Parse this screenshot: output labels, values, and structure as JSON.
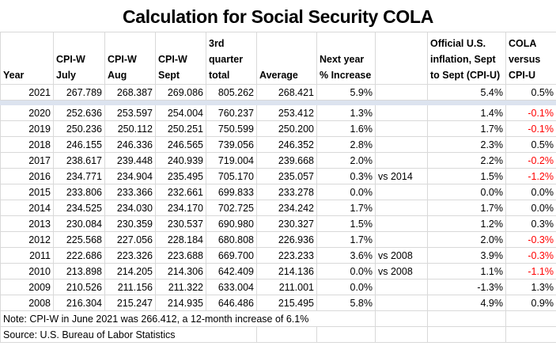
{
  "title": "Calculation for Social Security COLA",
  "headers": [
    "Year",
    "CPI-W July",
    "CPI-W Aug",
    "CPI-W Sept",
    "3rd quarter total",
    "Average",
    "Next year % Increase",
    "",
    "Official U.S. inflation, Sept to Sept (CPI-U)",
    "COLA versus CPI-U"
  ],
  "top_row": [
    "2021",
    "267.789",
    "268.387",
    "269.086",
    "805.262",
    "268.421",
    "5.9%",
    "",
    "5.4%",
    "0.5%"
  ],
  "rows": [
    [
      "2020",
      "252.636",
      "253.597",
      "254.004",
      "760.237",
      "253.412",
      "1.3%",
      "",
      "1.4%",
      "-0.1%"
    ],
    [
      "2019",
      "250.236",
      "250.112",
      "250.251",
      "750.599",
      "250.200",
      "1.6%",
      "",
      "1.7%",
      "-0.1%"
    ],
    [
      "2018",
      "246.155",
      "246.336",
      "246.565",
      "739.056",
      "246.352",
      "2.8%",
      "",
      "2.3%",
      "0.5%"
    ],
    [
      "2017",
      "238.617",
      "239.448",
      "240.939",
      "719.004",
      "239.668",
      "2.0%",
      "",
      "2.2%",
      "-0.2%"
    ],
    [
      "2016",
      "234.771",
      "234.904",
      "235.495",
      "705.170",
      "235.057",
      "0.3%",
      "vs 2014",
      "1.5%",
      "-1.2%"
    ],
    [
      "2015",
      "233.806",
      "233.366",
      "232.661",
      "699.833",
      "233.278",
      "0.0%",
      "",
      "0.0%",
      "0.0%"
    ],
    [
      "2014",
      "234.525",
      "234.030",
      "234.170",
      "702.725",
      "234.242",
      "1.7%",
      "",
      "1.7%",
      "0.0%"
    ],
    [
      "2013",
      "230.084",
      "230.359",
      "230.537",
      "690.980",
      "230.327",
      "1.5%",
      "",
      "1.2%",
      "0.3%"
    ],
    [
      "2012",
      "225.568",
      "227.056",
      "228.184",
      "680.808",
      "226.936",
      "1.7%",
      "",
      "2.0%",
      "-0.3%"
    ],
    [
      "2011",
      "222.686",
      "223.326",
      "223.688",
      "669.700",
      "223.233",
      "3.6%",
      "vs 2008",
      "3.9%",
      "-0.3%"
    ],
    [
      "2010",
      "213.898",
      "214.205",
      "214.306",
      "642.409",
      "214.136",
      "0.0%",
      "vs 2008",
      "1.1%",
      "-1.1%"
    ],
    [
      "2009",
      "210.526",
      "211.156",
      "211.322",
      "633.004",
      "211.001",
      "0.0%",
      "",
      "-1.3%",
      "1.3%"
    ],
    [
      "2008",
      "216.304",
      "215.247",
      "214.935",
      "646.486",
      "215.495",
      "5.8%",
      "",
      "4.9%",
      "0.9%"
    ]
  ],
  "note": "Note: CPI-W in June 2021 was 266.412, a 12-month increase of 6.1%",
  "source": "Source: U.S. Bureau of Labor Statistics",
  "colors": {
    "negative": "#ff0000",
    "separator_band": "#dce3ef",
    "grid": "#d9d9d9"
  }
}
